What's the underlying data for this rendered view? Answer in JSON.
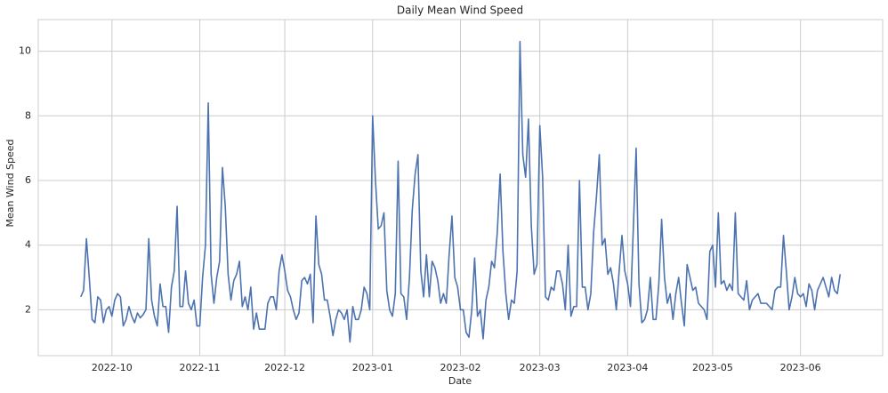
{
  "chart_data": {
    "type": "line",
    "title": "Daily Mean Wind Speed",
    "xlabel": "Date",
    "ylabel": "Mean Wind Speed",
    "color": "#4c72b0",
    "grid": true,
    "x": [
      "2022-09-20",
      "2022-09-21",
      "2022-09-22",
      "2022-09-23",
      "2022-09-24",
      "2022-09-25",
      "2022-09-26",
      "2022-09-27",
      "2022-09-28",
      "2022-09-29",
      "2022-09-30",
      "2022-10-01",
      "2022-10-02",
      "2022-10-03",
      "2022-10-04",
      "2022-10-05",
      "2022-10-06",
      "2022-10-07",
      "2022-10-08",
      "2022-10-09",
      "2022-10-10",
      "2022-10-11",
      "2022-10-12",
      "2022-10-13",
      "2022-10-14",
      "2022-10-15",
      "2022-10-16",
      "2022-10-17",
      "2022-10-18",
      "2022-10-19",
      "2022-10-20",
      "2022-10-21",
      "2022-10-22",
      "2022-10-23",
      "2022-10-24",
      "2022-10-25",
      "2022-10-26",
      "2022-10-27",
      "2022-10-28",
      "2022-10-29",
      "2022-10-30",
      "2022-10-31",
      "2022-11-01",
      "2022-11-02",
      "2022-11-03",
      "2022-11-04",
      "2022-11-05",
      "2022-11-06",
      "2022-11-07",
      "2022-11-08",
      "2022-11-09",
      "2022-11-10",
      "2022-11-11",
      "2022-11-12",
      "2022-11-13",
      "2022-11-14",
      "2022-11-15",
      "2022-11-16",
      "2022-11-17",
      "2022-11-18",
      "2022-11-19",
      "2022-11-20",
      "2022-11-21",
      "2022-11-22",
      "2022-11-23",
      "2022-11-24",
      "2022-11-25",
      "2022-11-26",
      "2022-11-27",
      "2022-11-28",
      "2022-11-29",
      "2022-11-30",
      "2022-12-01",
      "2022-12-02",
      "2022-12-03",
      "2022-12-04",
      "2022-12-05",
      "2022-12-06",
      "2022-12-07",
      "2022-12-08",
      "2022-12-09",
      "2022-12-10",
      "2022-12-11",
      "2022-12-12",
      "2022-12-13",
      "2022-12-14",
      "2022-12-15",
      "2022-12-16",
      "2022-12-17",
      "2022-12-18",
      "2022-12-19",
      "2022-12-20",
      "2022-12-21",
      "2022-12-22",
      "2022-12-23",
      "2022-12-24",
      "2022-12-25",
      "2022-12-26",
      "2022-12-27",
      "2022-12-28",
      "2022-12-29",
      "2022-12-30",
      "2022-12-31",
      "2023-01-01",
      "2023-01-02",
      "2023-01-03",
      "2023-01-04",
      "2023-01-05",
      "2023-01-06",
      "2023-01-07",
      "2023-01-08",
      "2023-01-09",
      "2023-01-10",
      "2023-01-11",
      "2023-01-12",
      "2023-01-13",
      "2023-01-14",
      "2023-01-15",
      "2023-01-16",
      "2023-01-17",
      "2023-01-18",
      "2023-01-19",
      "2023-01-20",
      "2023-01-21",
      "2023-01-22",
      "2023-01-23",
      "2023-01-24",
      "2023-01-25",
      "2023-01-26",
      "2023-01-27",
      "2023-01-28",
      "2023-01-29",
      "2023-01-30",
      "2023-01-31",
      "2023-02-01",
      "2023-02-02",
      "2023-02-03",
      "2023-02-04",
      "2023-02-05",
      "2023-02-06",
      "2023-02-07",
      "2023-02-08",
      "2023-02-09",
      "2023-02-10",
      "2023-02-11",
      "2023-02-12",
      "2023-02-13",
      "2023-02-14",
      "2023-02-15",
      "2023-02-16",
      "2023-02-17",
      "2023-02-18",
      "2023-02-19",
      "2023-02-20",
      "2023-02-21",
      "2023-02-22",
      "2023-02-23",
      "2023-02-24",
      "2023-02-25",
      "2023-02-26",
      "2023-02-27",
      "2023-02-28",
      "2023-03-01",
      "2023-03-02",
      "2023-03-03",
      "2023-03-04",
      "2023-03-05",
      "2023-03-06",
      "2023-03-07",
      "2023-03-08",
      "2023-03-09",
      "2023-03-10",
      "2023-03-11",
      "2023-03-12",
      "2023-03-13",
      "2023-03-14",
      "2023-03-15",
      "2023-03-16",
      "2023-03-17",
      "2023-03-18",
      "2023-03-19",
      "2023-03-20",
      "2023-03-21",
      "2023-03-22",
      "2023-03-23",
      "2023-03-24",
      "2023-03-25",
      "2023-03-26",
      "2023-03-27",
      "2023-03-28",
      "2023-03-29",
      "2023-03-30",
      "2023-03-31",
      "2023-04-01",
      "2023-04-02",
      "2023-04-03",
      "2023-04-04",
      "2023-04-05",
      "2023-04-06",
      "2023-04-07",
      "2023-04-08",
      "2023-04-09",
      "2023-04-10",
      "2023-04-11",
      "2023-04-12",
      "2023-04-13",
      "2023-04-14",
      "2023-04-15",
      "2023-04-16",
      "2023-04-17",
      "2023-04-18",
      "2023-04-19",
      "2023-04-20",
      "2023-04-21",
      "2023-04-22",
      "2023-04-23",
      "2023-04-24",
      "2023-04-25",
      "2023-04-26",
      "2023-04-27",
      "2023-04-28",
      "2023-04-29",
      "2023-04-30",
      "2023-05-01",
      "2023-05-02",
      "2023-05-03",
      "2023-05-04",
      "2023-05-05",
      "2023-05-06",
      "2023-05-07",
      "2023-05-08",
      "2023-05-09",
      "2023-05-10",
      "2023-05-11",
      "2023-05-12",
      "2023-05-13",
      "2023-05-14",
      "2023-05-15",
      "2023-05-16",
      "2023-05-17",
      "2023-05-18",
      "2023-05-19",
      "2023-05-20",
      "2023-05-21",
      "2023-05-22",
      "2023-05-23",
      "2023-05-24",
      "2023-05-25",
      "2023-05-26",
      "2023-05-27",
      "2023-05-28",
      "2023-05-29",
      "2023-05-30",
      "2023-05-31",
      "2023-06-01",
      "2023-06-02",
      "2023-06-03",
      "2023-06-04",
      "2023-06-05",
      "2023-06-06",
      "2023-06-07",
      "2023-06-08",
      "2023-06-09",
      "2023-06-10",
      "2023-06-11",
      "2023-06-12",
      "2023-06-13",
      "2023-06-14",
      "2023-06-15"
    ],
    "values": [
      2.4,
      2.6,
      4.2,
      3.0,
      1.7,
      1.6,
      2.4,
      2.3,
      1.6,
      2.0,
      2.1,
      1.8,
      2.3,
      2.5,
      2.4,
      1.5,
      1.7,
      2.1,
      1.8,
      1.6,
      1.9,
      1.75,
      1.85,
      2.0,
      4.2,
      2.3,
      1.8,
      1.5,
      2.8,
      2.1,
      2.1,
      1.3,
      2.7,
      3.2,
      5.2,
      2.1,
      2.1,
      3.2,
      2.2,
      2.0,
      2.3,
      1.5,
      1.5,
      3.0,
      4.0,
      8.4,
      3.1,
      2.2,
      3.0,
      3.5,
      6.4,
      5.2,
      3.1,
      2.3,
      2.9,
      3.1,
      3.5,
      2.1,
      2.4,
      2.0,
      2.7,
      1.4,
      1.9,
      1.4,
      1.4,
      1.4,
      2.2,
      2.4,
      2.4,
      2.0,
      3.2,
      3.7,
      3.2,
      2.6,
      2.4,
      2.0,
      1.7,
      1.9,
      2.9,
      3.0,
      2.8,
      3.1,
      1.6,
      4.9,
      3.4,
      3.1,
      2.3,
      2.3,
      1.8,
      1.2,
      1.7,
      2.0,
      1.9,
      1.7,
      2.0,
      1.0,
      2.1,
      1.7,
      1.7,
      2.0,
      2.7,
      2.5,
      2.0,
      8.0,
      6.0,
      4.5,
      4.6,
      5.0,
      2.6,
      2.0,
      1.8,
      2.5,
      6.6,
      2.5,
      2.4,
      1.7,
      3.0,
      5.1,
      6.2,
      6.8,
      3.2,
      2.4,
      3.7,
      2.4,
      3.5,
      3.3,
      2.9,
      2.2,
      2.5,
      2.2,
      3.7,
      4.9,
      3.0,
      2.7,
      2.0,
      2.0,
      1.3,
      1.15,
      2.0,
      3.6,
      1.8,
      2.0,
      1.1,
      2.3,
      2.7,
      3.5,
      3.3,
      4.4,
      6.2,
      3.8,
      2.5,
      1.7,
      2.3,
      2.2,
      3.2,
      10.3,
      6.8,
      6.1,
      7.9,
      4.6,
      3.1,
      3.4,
      7.7,
      6.1,
      2.4,
      2.3,
      2.7,
      2.6,
      3.2,
      3.2,
      2.8,
      2.0,
      4.0,
      1.8,
      2.1,
      2.1,
      6.0,
      2.7,
      2.7,
      2.0,
      2.5,
      4.4,
      5.5,
      6.8,
      4.0,
      4.2,
      3.1,
      3.3,
      2.8,
      2.0,
      3.2,
      4.3,
      3.2,
      2.8,
      2.1,
      4.5,
      7.0,
      2.8,
      1.6,
      1.7,
      2.0,
      3.0,
      1.7,
      1.7,
      2.8,
      4.8,
      3.0,
      2.2,
      2.5,
      1.7,
      2.5,
      3.0,
      2.2,
      1.5,
      3.4,
      3.0,
      2.6,
      2.7,
      2.2,
      2.1,
      2.0,
      1.7,
      3.8,
      4.0,
      2.7,
      5.0,
      2.8,
      2.9,
      2.6,
      2.8,
      2.6,
      5.0,
      2.5,
      2.4,
      2.3,
      2.9,
      2.0,
      2.3,
      2.4,
      2.5,
      2.2,
      2.2,
      2.2,
      2.1,
      2.0,
      2.6,
      2.7,
      2.7,
      4.3,
      3.2,
      2.0,
      2.4,
      3.0,
      2.5,
      2.4,
      2.5,
      2.1,
      2.8,
      2.6,
      2.0,
      2.6,
      2.8,
      3.0,
      2.7,
      2.4,
      3.0,
      2.6,
      2.5,
      3.1
    ],
    "xlim": [
      "2022-09-05",
      "2023-06-30"
    ],
    "xticks": [
      {
        "value": "2022-10-01",
        "label": "2022-10"
      },
      {
        "value": "2022-11-01",
        "label": "2022-11"
      },
      {
        "value": "2022-12-01",
        "label": "2022-12"
      },
      {
        "value": "2023-01-01",
        "label": "2023-01"
      },
      {
        "value": "2023-02-01",
        "label": "2023-02"
      },
      {
        "value": "2023-03-01",
        "label": "2023-03"
      },
      {
        "value": "2023-04-01",
        "label": "2023-04"
      },
      {
        "value": "2023-05-01",
        "label": "2023-05"
      },
      {
        "value": "2023-06-01",
        "label": "2023-06"
      }
    ],
    "ylim": [
      0.58,
      10.98
    ],
    "yticks": [
      2,
      4,
      6,
      8,
      10
    ]
  }
}
